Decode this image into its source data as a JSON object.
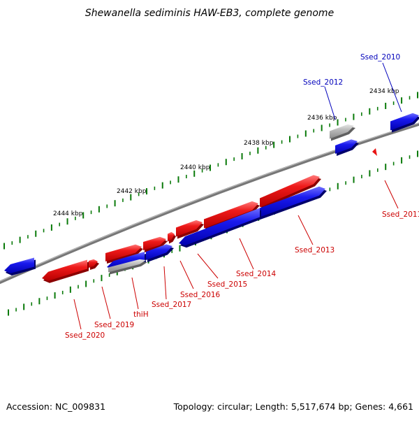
{
  "title": "Shewanella sediminis HAW-EB3, complete genome",
  "footer": {
    "accession": "Accession: NC_009831",
    "summary": "Topology: circular; Length: 5,517,674 bp; Genes: 4,661"
  },
  "colors": {
    "forward_gene": "#e81414",
    "reverse_gene": "#1414e6",
    "pseudo_gene": "#a8a8a8",
    "backbone": "#777777",
    "tick": "#0a7a0a",
    "forward_label": "#cc0000",
    "reverse_label": "#0000bb"
  },
  "kbp_labels": [
    "2434 kbp",
    "2436 kbp",
    "2438 kbp",
    "2440 kbp",
    "2442 kbp",
    "2444 kbp"
  ],
  "genes": [
    {
      "label": "Ssed_2010",
      "strand": "reverse"
    },
    {
      "label": "Ssed_2011",
      "strand": "forward"
    },
    {
      "label": "Ssed_2012",
      "strand": "reverse"
    },
    {
      "label": "Ssed_2013",
      "strand": "forward"
    },
    {
      "label": "Ssed_2014",
      "strand": "forward"
    },
    {
      "label": "Ssed_2015",
      "strand": "forward"
    },
    {
      "label": "Ssed_2016",
      "strand": "forward"
    },
    {
      "label": "Ssed_2017",
      "strand": "forward"
    },
    {
      "label": "thiH",
      "strand": "forward"
    },
    {
      "label": "Ssed_2019",
      "strand": "forward"
    },
    {
      "label": "Ssed_2020",
      "strand": "forward"
    }
  ]
}
